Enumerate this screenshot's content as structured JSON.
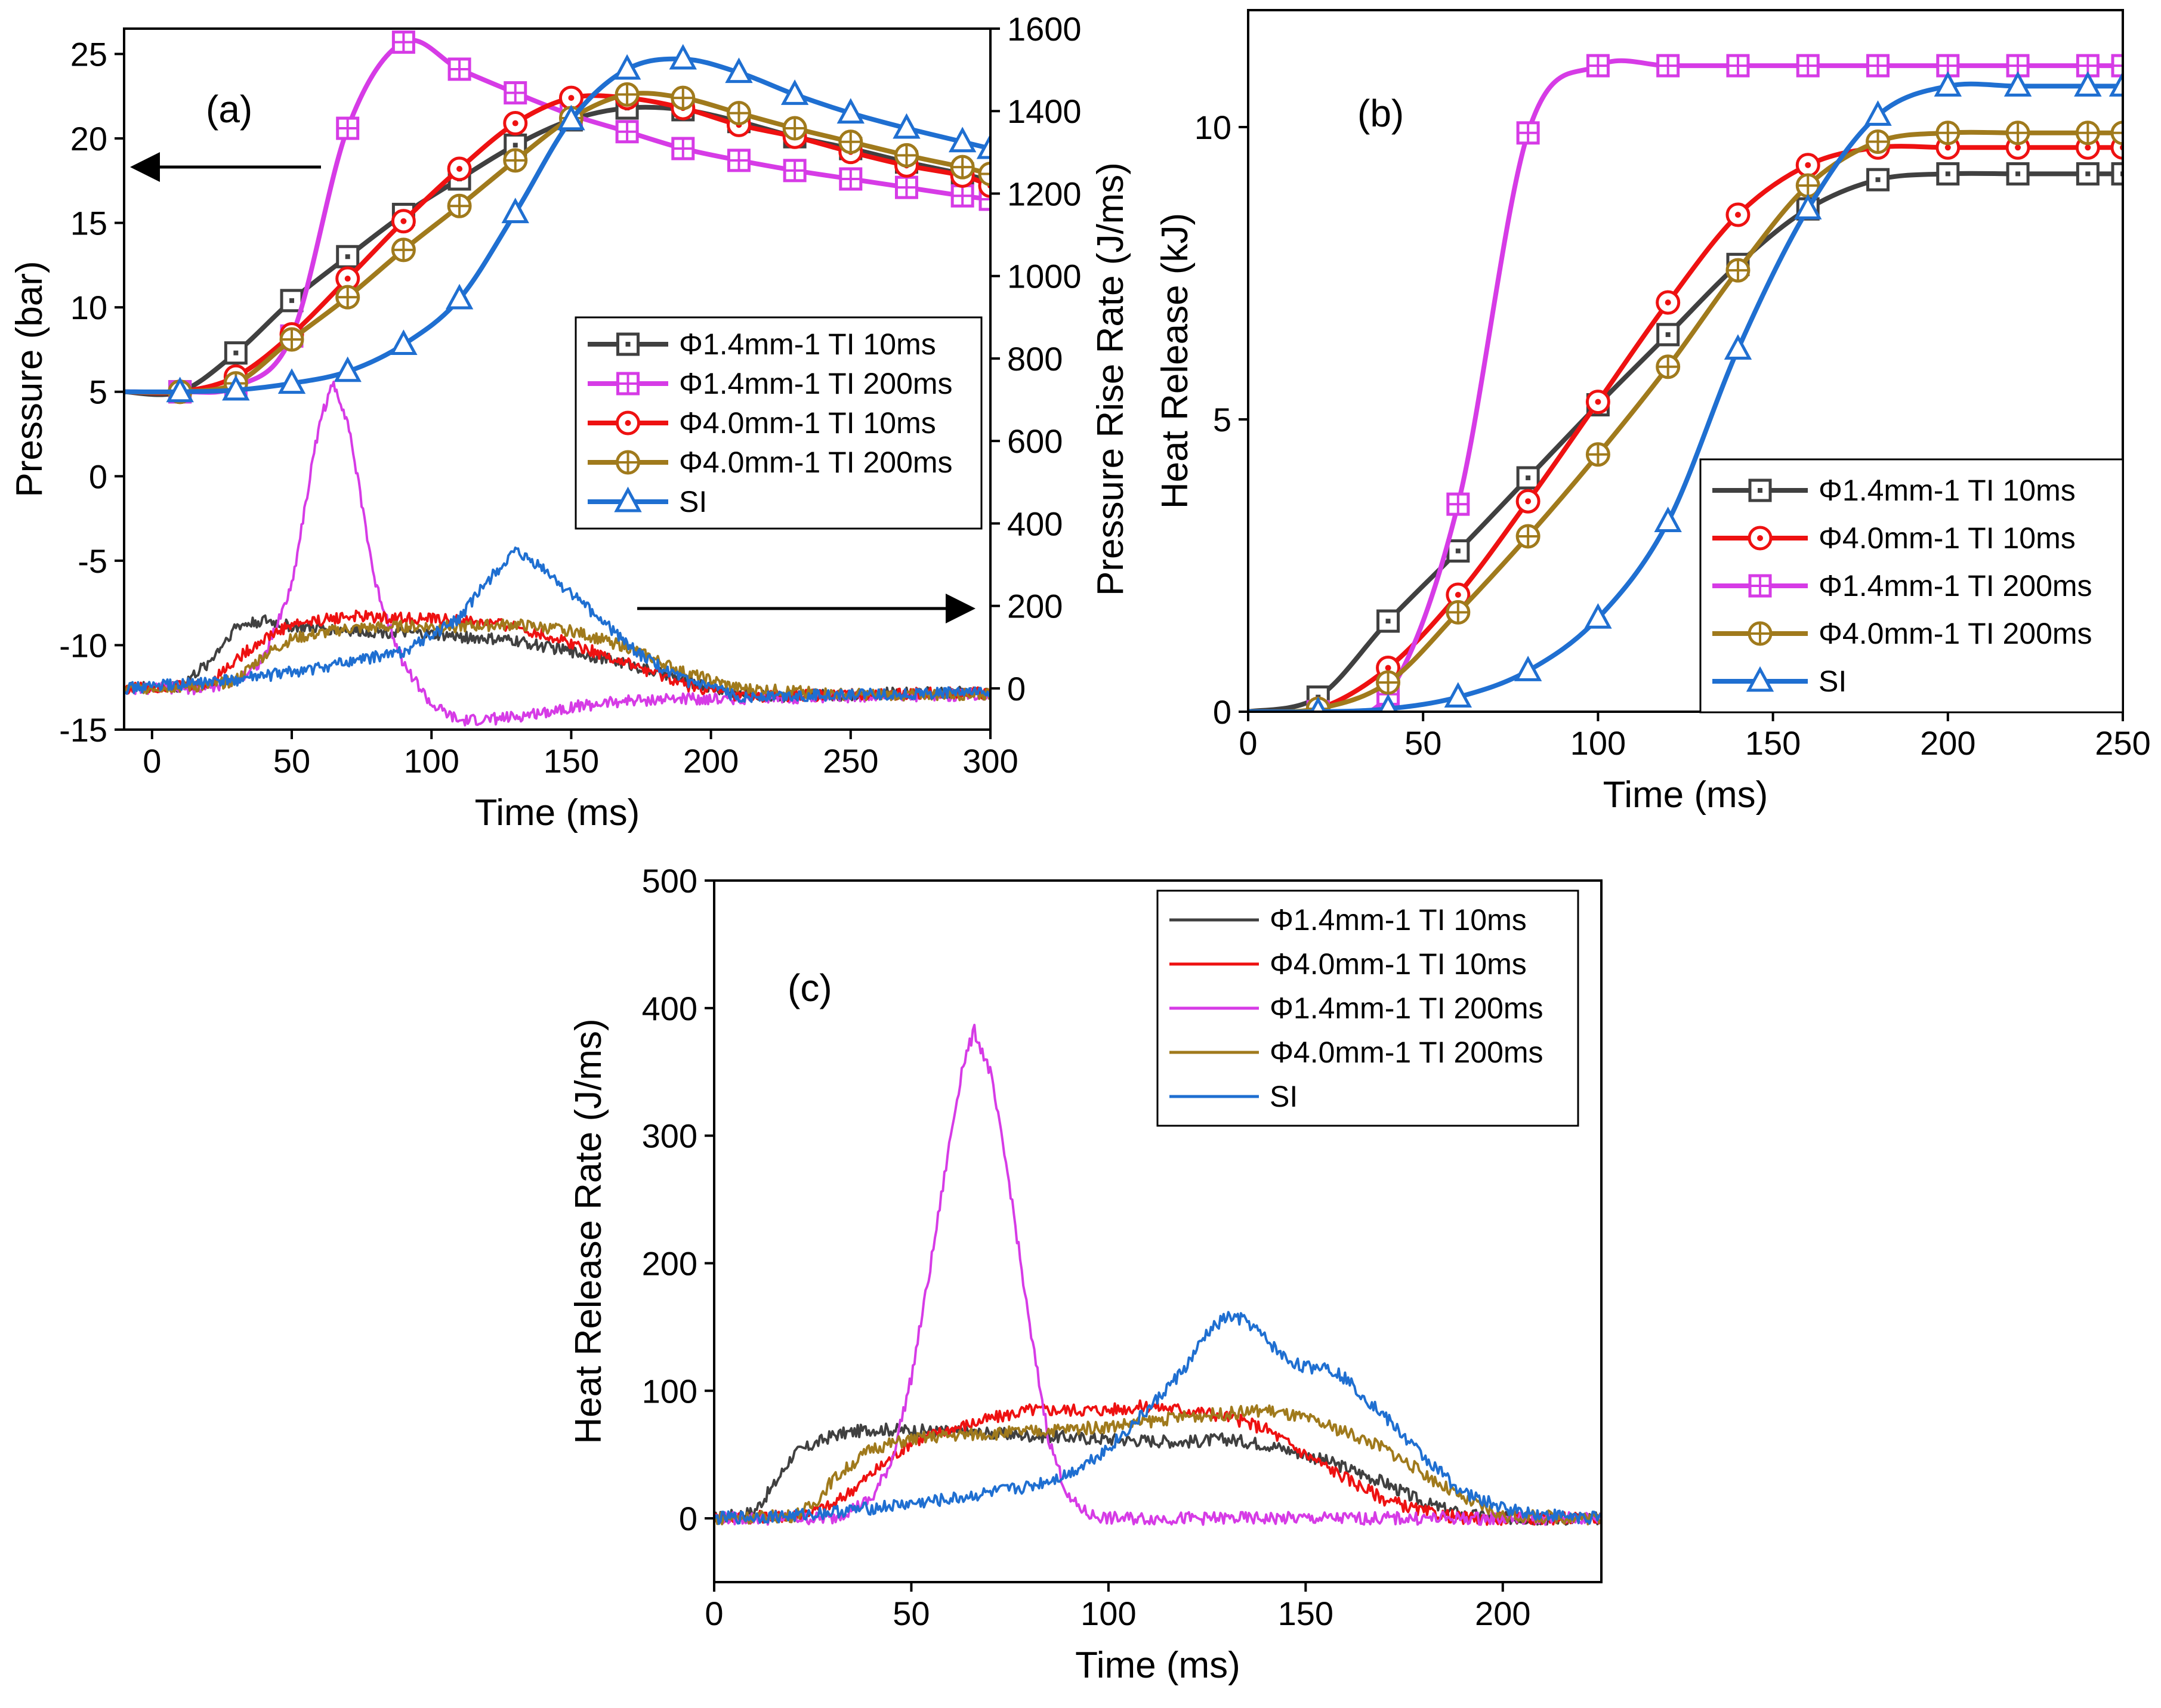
{
  "chart_data": [
    {
      "panel": "(a)",
      "type": "line",
      "xlabel": "Time (ms)",
      "ylabel": "Pressure (bar)",
      "ylabel_right": "Pressure Rise Rate  (J/ms)",
      "xlim": [
        -10,
        300
      ],
      "ylim": [
        -15,
        26.5
      ],
      "ylim_right": [
        -100,
        1600
      ],
      "xticks": [
        "0",
        "50",
        "100",
        "150",
        "200",
        "250",
        "300"
      ],
      "yticks": [
        "25",
        "20",
        "15",
        "10",
        "5",
        "0",
        "-5",
        "-10",
        "-15"
      ],
      "yticks_right": [
        "1600",
        "1400",
        "1200",
        "1000",
        "800",
        "600",
        "400",
        "200",
        "0"
      ],
      "annotations": [
        "left arrow points to Pressure axis",
        "right arrow points to Pressure Rise Rate axis"
      ],
      "series": [
        {
          "name": "Φ1.4mm-1 TI 10ms",
          "color": "#404040",
          "marker": "square-dot",
          "axis": "left",
          "x": [
            -10,
            10,
            30,
            50,
            70,
            90,
            110,
            130,
            150,
            170,
            190,
            210,
            230,
            250,
            270,
            290,
            300
          ],
          "y": [
            5,
            5,
            7.3,
            10.4,
            13.0,
            15.5,
            17.6,
            19.6,
            21.1,
            21.8,
            21.7,
            21.0,
            20.1,
            19.4,
            18.6,
            17.9,
            17.5
          ]
        },
        {
          "name": "Φ1.4mm-1 TI 200ms",
          "color": "#d63be6",
          "marker": "square-plus",
          "axis": "left",
          "x": [
            -10,
            10,
            30,
            50,
            70,
            90,
            110,
            130,
            150,
            170,
            190,
            210,
            230,
            250,
            270,
            290,
            300
          ],
          "y": [
            5,
            5,
            5.3,
            8.3,
            20.6,
            25.7,
            24.1,
            22.7,
            21.4,
            20.4,
            19.4,
            18.7,
            18.1,
            17.6,
            17.1,
            16.6,
            16.4
          ]
        },
        {
          "name": "Φ4.0mm-1 TI 10ms",
          "color": "#ee1111",
          "marker": "circle-dot",
          "axis": "left",
          "x": [
            -10,
            10,
            30,
            50,
            70,
            90,
            110,
            130,
            150,
            170,
            190,
            210,
            230,
            250,
            270,
            290,
            300
          ],
          "y": [
            5,
            5,
            5.9,
            8.4,
            11.7,
            15.1,
            18.2,
            20.9,
            22.4,
            22.4,
            21.8,
            20.8,
            20.1,
            19.2,
            18.4,
            17.8,
            17.2
          ]
        },
        {
          "name": "Φ4.0mm-1 TI 200ms",
          "color": "#a07a1c",
          "marker": "circle-plus",
          "axis": "left",
          "x": [
            -10,
            10,
            30,
            50,
            70,
            90,
            110,
            130,
            150,
            170,
            190,
            210,
            230,
            250,
            270,
            290,
            300
          ],
          "y": [
            5,
            5,
            5.5,
            8.1,
            10.6,
            13.4,
            16.0,
            18.7,
            21.2,
            22.6,
            22.4,
            21.5,
            20.6,
            19.8,
            19.0,
            18.3,
            17.9
          ]
        },
        {
          "name": "SI",
          "color": "#1f6fd1",
          "marker": "triangle",
          "axis": "left",
          "x": [
            -10,
            10,
            30,
            50,
            70,
            90,
            110,
            130,
            150,
            170,
            190,
            210,
            230,
            250,
            270,
            290,
            300
          ],
          "y": [
            5,
            5,
            5.1,
            5.5,
            6.2,
            7.8,
            10.5,
            15.6,
            21.1,
            24.1,
            24.7,
            23.9,
            22.6,
            21.5,
            20.6,
            19.8,
            19.4
          ]
        },
        {
          "name": "Φ1.4mm-1 TI 10ms",
          "color": "#404040",
          "marker": "none",
          "axis": "right",
          "x": [
            -10,
            10,
            20,
            30,
            40,
            50,
            70,
            90,
            110,
            130,
            150,
            170,
            190,
            210,
            230,
            250,
            270,
            300
          ],
          "y": [
            0,
            5,
            60,
            150,
            165,
            150,
            140,
            135,
            125,
            115,
            90,
            60,
            20,
            -15,
            -20,
            -15,
            -10,
            -10
          ]
        },
        {
          "name": "Φ1.4mm-1 TI 200ms",
          "color": "#d63be6",
          "marker": "none",
          "axis": "right",
          "x": [
            -10,
            20,
            30,
            40,
            50,
            55,
            60,
            65,
            70,
            75,
            80,
            90,
            100,
            110,
            130,
            150,
            170,
            190,
            210,
            250,
            300
          ],
          "y": [
            0,
            0,
            20,
            70,
            250,
            450,
            650,
            740,
            650,
            450,
            250,
            60,
            -40,
            -80,
            -70,
            -45,
            -30,
            -25,
            -25,
            -20,
            -15
          ]
        },
        {
          "name": "Φ4.0mm-1 TI 10ms",
          "color": "#ee1111",
          "marker": "none",
          "axis": "right",
          "x": [
            -10,
            20,
            30,
            40,
            50,
            70,
            90,
            110,
            130,
            150,
            170,
            190,
            210,
            250,
            300
          ],
          "y": [
            0,
            10,
            70,
            120,
            155,
            175,
            170,
            165,
            150,
            110,
            60,
            10,
            -20,
            -15,
            -10
          ]
        },
        {
          "name": "Φ4.0mm-1 TI 200ms",
          "color": "#a07a1c",
          "marker": "none",
          "axis": "right",
          "x": [
            -10,
            20,
            30,
            40,
            50,
            70,
            90,
            110,
            130,
            150,
            170,
            190,
            210,
            250,
            300
          ],
          "y": [
            0,
            5,
            20,
            80,
            120,
            145,
            150,
            150,
            155,
            140,
            100,
            40,
            0,
            -15,
            -15
          ]
        },
        {
          "name": "SI",
          "color": "#1f6fd1",
          "marker": "none",
          "axis": "right",
          "x": [
            -10,
            30,
            60,
            90,
            110,
            120,
            130,
            140,
            150,
            160,
            175,
            190,
            210,
            250,
            300
          ],
          "y": [
            0,
            20,
            50,
            90,
            170,
            260,
            330,
            290,
            230,
            170,
            80,
            20,
            -20,
            -15,
            -10
          ]
        }
      ],
      "legend": [
        "Φ1.4mm-1 TI 10ms",
        "Φ1.4mm-1 TI 200ms",
        "Φ4.0mm-1 TI 10ms",
        "Φ4.0mm-1 TI 200ms",
        "SI"
      ]
    },
    {
      "panel": "(b)",
      "type": "line",
      "xlabel": "Time (ms)",
      "ylabel": "Heat Release (kJ)",
      "xlim": [
        0,
        250
      ],
      "ylim": [
        0,
        12
      ],
      "xticks": [
        "0",
        "50",
        "100",
        "150",
        "200",
        "250"
      ],
      "yticks": [
        "10",
        "5",
        "0"
      ],
      "series": [
        {
          "name": "Φ1.4mm-1 TI 10ms",
          "color": "#404040",
          "marker": "square-dot",
          "x": [
            0,
            20,
            40,
            60,
            80,
            100,
            120,
            140,
            160,
            180,
            200,
            220,
            240,
            250
          ],
          "y": [
            0,
            0.25,
            1.55,
            2.75,
            4.0,
            5.25,
            6.45,
            7.65,
            8.6,
            9.1,
            9.2,
            9.2,
            9.2,
            9.2
          ]
        },
        {
          "name": "Φ4.0mm-1 TI 10ms",
          "color": "#ee1111",
          "marker": "circle-dot",
          "x": [
            0,
            20,
            40,
            60,
            80,
            100,
            120,
            140,
            160,
            180,
            200,
            220,
            240,
            250
          ],
          "y": [
            0,
            0.05,
            0.75,
            2.0,
            3.6,
            5.3,
            7.0,
            8.5,
            9.35,
            9.65,
            9.65,
            9.65,
            9.65,
            9.65
          ]
        },
        {
          "name": "Φ1.4mm-1 TI 200ms",
          "color": "#d63be6",
          "marker": "square-plus",
          "x": [
            0,
            20,
            40,
            60,
            80,
            100,
            120,
            140,
            160,
            180,
            200,
            220,
            240,
            250
          ],
          "y": [
            0,
            0,
            0.3,
            3.55,
            9.9,
            11.05,
            11.05,
            11.05,
            11.05,
            11.05,
            11.05,
            11.05,
            11.05,
            11.05
          ]
        },
        {
          "name": "Φ4.0mm-1 TI 200ms",
          "color": "#a07a1c",
          "marker": "circle-plus",
          "x": [
            0,
            20,
            40,
            60,
            80,
            100,
            120,
            140,
            160,
            180,
            200,
            220,
            240,
            250
          ],
          "y": [
            0,
            0.05,
            0.5,
            1.7,
            3.0,
            4.4,
            5.9,
            7.55,
            9.0,
            9.75,
            9.9,
            9.9,
            9.9,
            9.9
          ]
        },
        {
          "name": "SI",
          "color": "#1f6fd1",
          "marker": "triangle",
          "x": [
            0,
            20,
            40,
            60,
            80,
            100,
            120,
            140,
            160,
            180,
            200,
            220,
            240,
            250
          ],
          "y": [
            0,
            0,
            0.05,
            0.25,
            0.7,
            1.6,
            3.25,
            6.2,
            8.6,
            10.2,
            10.7,
            10.7,
            10.7,
            10.7
          ]
        }
      ],
      "legend": [
        "Φ1.4mm-1 TI 10ms",
        "Φ4.0mm-1 TI 10ms",
        "Φ1.4mm-1 TI 200ms",
        "Φ4.0mm-1 TI 200ms",
        "SI"
      ]
    },
    {
      "panel": "(c)",
      "type": "line",
      "xlabel": "Time (ms)",
      "ylabel": "Heat Release Rate (J/ms)",
      "xlim": [
        0,
        225
      ],
      "ylim": [
        -50,
        500
      ],
      "xticks": [
        "0",
        "50",
        "100",
        "150",
        "200"
      ],
      "yticks": [
        "500",
        "400",
        "300",
        "200",
        "100",
        "0"
      ],
      "series": [
        {
          "name": "Φ1.4mm-1 TI 10ms",
          "color": "#404040",
          "x": [
            0,
            10,
            15,
            20,
            30,
            40,
            60,
            80,
            100,
            120,
            130,
            140,
            150,
            160,
            170,
            180,
            190,
            200,
            225
          ],
          "y": [
            0,
            5,
            25,
            50,
            65,
            70,
            68,
            65,
            62,
            60,
            62,
            58,
            50,
            40,
            28,
            12,
            3,
            0,
            0
          ]
        },
        {
          "name": "Φ4.0mm-1 TI 10ms",
          "color": "#ee1111",
          "x": [
            0,
            20,
            30,
            40,
            50,
            60,
            70,
            80,
            90,
            100,
            110,
            120,
            130,
            140,
            150,
            160,
            170,
            180,
            190,
            225
          ],
          "y": [
            0,
            2,
            10,
            35,
            60,
            70,
            78,
            85,
            85,
            85,
            88,
            85,
            80,
            70,
            50,
            32,
            15,
            5,
            0,
            0
          ]
        },
        {
          "name": "Φ1.4mm-1 TI 200ms",
          "color": "#d63be6",
          "x": [
            0,
            30,
            40,
            45,
            50,
            55,
            60,
            63,
            66,
            70,
            75,
            80,
            85,
            90,
            95,
            100,
            110,
            150,
            225
          ],
          "y": [
            0,
            0,
            15,
            45,
            110,
            200,
            300,
            355,
            382,
            350,
            260,
            150,
            60,
            15,
            3,
            0,
            0,
            0,
            0
          ]
        },
        {
          "name": "Φ4.0mm-1 TI 200ms",
          "color": "#a07a1c",
          "x": [
            0,
            20,
            25,
            30,
            40,
            50,
            60,
            80,
            100,
            120,
            130,
            140,
            150,
            160,
            170,
            180,
            190,
            200,
            225
          ],
          "y": [
            0,
            2,
            10,
            30,
            55,
            62,
            65,
            68,
            72,
            80,
            82,
            85,
            78,
            68,
            55,
            35,
            15,
            2,
            0
          ]
        },
        {
          "name": "SI",
          "color": "#1f6fd1",
          "x": [
            0,
            20,
            40,
            60,
            80,
            90,
            100,
            110,
            120,
            125,
            130,
            135,
            140,
            145,
            150,
            155,
            160,
            170,
            180,
            190,
            200,
            210,
            225
          ],
          "y": [
            0,
            2,
            8,
            15,
            25,
            35,
            55,
            85,
            120,
            145,
            158,
            155,
            140,
            125,
            118,
            120,
            110,
            80,
            48,
            20,
            8,
            3,
            0
          ]
        }
      ],
      "legend": [
        "Φ1.4mm-1 TI 10ms",
        "Φ4.0mm-1 TI 10ms",
        "Φ1.4mm-1 TI 200ms",
        "Φ4.0mm-1 TI 200ms",
        "SI"
      ]
    }
  ]
}
